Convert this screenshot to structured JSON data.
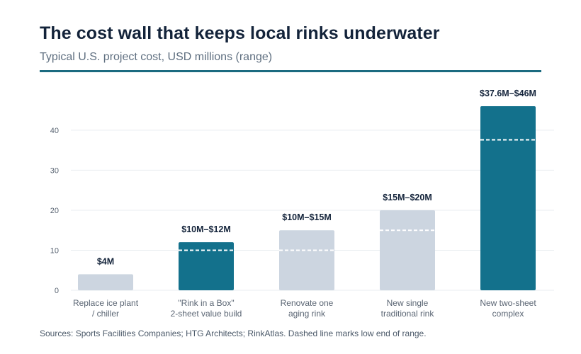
{
  "header": {
    "title": "The cost wall that keeps local rinks underwater",
    "subtitle": "Typical U.S. project cost, USD millions (range)"
  },
  "footer": {
    "source": "Sources: Sports Facilities Companies; HTG Architects; RinkAtlas. Dashed line marks low end of range."
  },
  "colors": {
    "highlight": "#13718c",
    "muted": "#ccd5e0",
    "grid": "#e9edf1",
    "axis_text": "#5a6573",
    "label_text": "#13233a",
    "dash": "#ffffff"
  },
  "chart_data": {
    "type": "bar",
    "title": "The cost wall that keeps local rinks underwater",
    "subtitle": "Typical U.S. project cost, USD millions (range)",
    "xlabel": "",
    "ylabel": "",
    "ylim": [
      0,
      46
    ],
    "yticks": [
      0,
      10,
      20,
      30,
      40
    ],
    "grid": true,
    "categories": [
      [
        "Replace ice plant",
        "/ chiller"
      ],
      [
        "\"Rink in a Box\"",
        "2-sheet value build"
      ],
      [
        "Renovate one",
        "aging rink"
      ],
      [
        "New single",
        "traditional rink"
      ],
      [
        "New two-sheet",
        "complex"
      ]
    ],
    "low": [
      4,
      10,
      10,
      15,
      37.6
    ],
    "high": [
      4,
      12,
      15,
      20,
      46
    ],
    "labels": [
      "$4M",
      "$10M–$12M",
      "$10M–$15M",
      "$15M–$20M",
      "$37.6M–$46M"
    ],
    "highlighted": [
      false,
      true,
      false,
      false,
      true
    ]
  }
}
